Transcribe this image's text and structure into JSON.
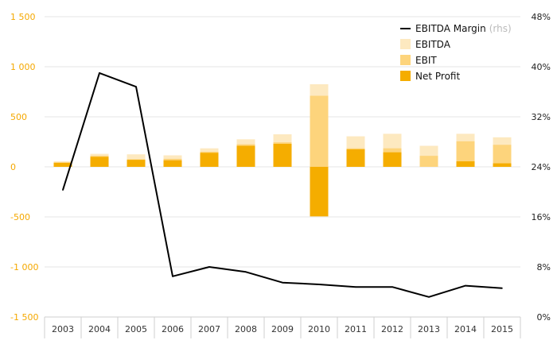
{
  "chart_data": {
    "type": "bar",
    "categories": [
      "2003",
      "2004",
      "2005",
      "2006",
      "2007",
      "2008",
      "2009",
      "2010",
      "2011",
      "2012",
      "2013",
      "2014",
      "2015"
    ],
    "series": [
      {
        "name": "EBITDA",
        "kind": "bar",
        "color": "#fde9c0",
        "values": [
          55,
          130,
          125,
          115,
          185,
          275,
          325,
          825,
          305,
          330,
          210,
          330,
          295
        ]
      },
      {
        "name": "EBIT",
        "kind": "bar",
        "color": "#fdd47c",
        "values": [
          45,
          110,
          75,
          80,
          150,
          225,
          245,
          710,
          185,
          185,
          110,
          255,
          220
        ]
      },
      {
        "name": "Net Profit",
        "kind": "bar",
        "color": "#f5ad00",
        "values": [
          40,
          100,
          70,
          65,
          140,
          210,
          230,
          -495,
          175,
          145,
          0,
          55,
          35
        ]
      },
      {
        "name": "EBITDA Margin",
        "kind": "line",
        "axis": "right",
        "color": "#000000",
        "values": [
          20.3,
          39.0,
          36.8,
          6.5,
          8.0,
          7.2,
          5.5,
          5.2,
          4.8,
          4.8,
          3.2,
          5.0,
          4.6
        ]
      }
    ],
    "ylim": [
      -1500,
      1500
    ],
    "yticks": [
      1500,
      1000,
      500,
      0,
      -500,
      -1000,
      -1500
    ],
    "ytick_labels": [
      "1 500",
      "1 000",
      "500",
      "0",
      "-500",
      "-1 000",
      "-1 500"
    ],
    "y2lim": [
      0,
      48
    ],
    "y2ticks": [
      48,
      40,
      32,
      24,
      16,
      8,
      0
    ],
    "y2tick_labels": [
      "48%",
      "40%",
      "32%",
      "24%",
      "16%",
      "8%",
      "0%"
    ],
    "title": "",
    "xlabel": "",
    "ylabel": "",
    "grid": true,
    "legend": {
      "position": "top-right",
      "entries": [
        {
          "label": "EBITDA Margin",
          "note": "(rhs)",
          "kind": "line",
          "color": "#000000"
        },
        {
          "label": "EBITDA",
          "note": "",
          "kind": "bar",
          "color": "#fde9c0"
        },
        {
          "label": "EBIT",
          "note": "",
          "kind": "bar",
          "color": "#fdd47c"
        },
        {
          "label": "Net Profit",
          "note": "",
          "kind": "bar",
          "color": "#f5ad00"
        }
      ]
    },
    "colors": {
      "left_axis_text": "#f5a800",
      "grid": "#e6e6e6"
    }
  }
}
